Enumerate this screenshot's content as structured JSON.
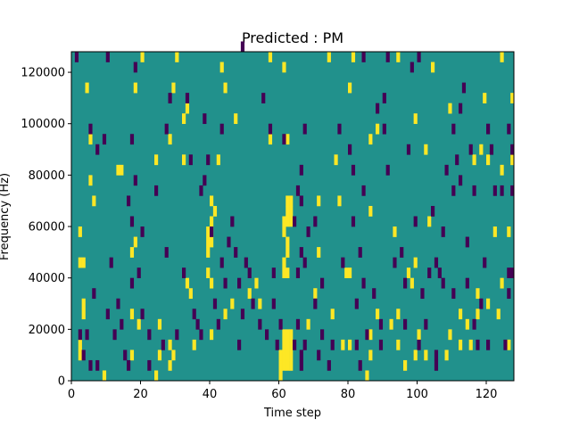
{
  "chart_data": {
    "type": "heatmap",
    "title": "Predicted : PM",
    "xlabel": "Time step",
    "ylabel": "Frequency (Hz)",
    "xlim": [
      0,
      128
    ],
    "ylim": [
      0,
      128000
    ],
    "x_ticks": [
      0,
      20,
      40,
      60,
      80,
      100,
      120
    ],
    "y_ticks": [
      0,
      20000,
      40000,
      60000,
      80000,
      100000,
      120000
    ],
    "x_tick_labels": [
      "0",
      "20",
      "40",
      "60",
      "80",
      "100",
      "120"
    ],
    "y_tick_labels": [
      "0",
      "20000",
      "40000",
      "60000",
      "80000",
      "100000",
      "120000"
    ],
    "grid": false,
    "colors": {
      "background": "#21918c",
      "high": "#fde725",
      "low": "#440154"
    },
    "cell_height_hz": 4000,
    "cells": {
      "high": [
        [
          2,
          8000
        ],
        [
          2,
          12000
        ],
        [
          3,
          24000
        ],
        [
          3,
          28000
        ],
        [
          2,
          44000
        ],
        [
          3,
          44000
        ],
        [
          2,
          56000
        ],
        [
          5,
          76000
        ],
        [
          6,
          68000
        ],
        [
          4,
          112000
        ],
        [
          5,
          92000
        ],
        [
          9,
          0
        ],
        [
          17,
          8000
        ],
        [
          17,
          24000
        ],
        [
          13,
          80000
        ],
        [
          14,
          80000
        ],
        [
          17,
          48000
        ],
        [
          18,
          52000
        ],
        [
          19,
          20000
        ],
        [
          20,
          124000
        ],
        [
          18,
          112000
        ],
        [
          24,
          0
        ],
        [
          25,
          20000
        ],
        [
          25,
          8000
        ],
        [
          24,
          84000
        ],
        [
          28,
          4000
        ],
        [
          29,
          8000
        ],
        [
          28,
          12000
        ],
        [
          30,
          124000
        ],
        [
          29,
          112000
        ],
        [
          28,
          92000
        ],
        [
          32,
          84000
        ],
        [
          33,
          36000
        ],
        [
          34,
          32000
        ],
        [
          35,
          12000
        ],
        [
          32,
          100000
        ],
        [
          33,
          104000
        ],
        [
          39,
          48000
        ],
        [
          39,
          52000
        ],
        [
          39,
          56000
        ],
        [
          40,
          52000
        ],
        [
          40,
          56000
        ],
        [
          40,
          36000
        ],
        [
          40,
          16000
        ],
        [
          40,
          68000
        ],
        [
          41,
          64000
        ],
        [
          40,
          60000
        ],
        [
          39,
          40000
        ],
        [
          42,
          84000
        ],
        [
          44,
          24000
        ],
        [
          46,
          28000
        ],
        [
          47,
          100000
        ],
        [
          44,
          112000
        ],
        [
          43,
          120000
        ],
        [
          51,
          32000
        ],
        [
          53,
          36000
        ],
        [
          54,
          28000
        ],
        [
          57,
          124000
        ],
        [
          57,
          92000
        ],
        [
          60,
          0
        ],
        [
          60,
          4000
        ],
        [
          60,
          8000
        ],
        [
          61,
          8000
        ],
        [
          61,
          12000
        ],
        [
          61,
          16000
        ],
        [
          61,
          4000
        ],
        [
          62,
          8000
        ],
        [
          62,
          12000
        ],
        [
          62,
          16000
        ],
        [
          62,
          4000
        ],
        [
          63,
          16000
        ],
        [
          63,
          12000
        ],
        [
          63,
          8000
        ],
        [
          63,
          4000
        ],
        [
          61,
          40000
        ],
        [
          62,
          40000
        ],
        [
          61,
          44000
        ],
        [
          62,
          48000
        ],
        [
          62,
          52000
        ],
        [
          61,
          56000
        ],
        [
          61,
          60000
        ],
        [
          62,
          60000
        ],
        [
          63,
          60000
        ],
        [
          62,
          64000
        ],
        [
          63,
          64000
        ],
        [
          62,
          68000
        ],
        [
          63,
          68000
        ],
        [
          62,
          92000
        ],
        [
          61,
          120000
        ],
        [
          68,
          20000
        ],
        [
          70,
          32000
        ],
        [
          71,
          48000
        ],
        [
          71,
          68000
        ],
        [
          74,
          124000
        ],
        [
          75,
          24000
        ],
        [
          76,
          84000
        ],
        [
          77,
          68000
        ],
        [
          78,
          12000
        ],
        [
          79,
          40000
        ],
        [
          80,
          40000
        ],
        [
          80,
          12000
        ],
        [
          80,
          112000
        ],
        [
          81,
          124000
        ],
        [
          85,
          0
        ],
        [
          86,
          16000
        ],
        [
          86,
          64000
        ],
        [
          88,
          24000
        ],
        [
          88,
          96000
        ],
        [
          86,
          92000
        ],
        [
          86,
          8000
        ],
        [
          92,
          20000
        ],
        [
          94,
          24000
        ],
        [
          93,
          56000
        ],
        [
          94,
          12000
        ],
        [
          94,
          124000
        ],
        [
          96,
          4000
        ],
        [
          97,
          40000
        ],
        [
          98,
          36000
        ],
        [
          99,
          8000
        ],
        [
          99,
          44000
        ],
        [
          99,
          100000
        ],
        [
          100,
          16000
        ],
        [
          102,
          8000
        ],
        [
          103,
          60000
        ],
        [
          104,
          120000
        ],
        [
          102,
          88000
        ],
        [
          108,
          8000
        ],
        [
          109,
          16000
        ],
        [
          109,
          104000
        ],
        [
          112,
          24000
        ],
        [
          112,
          12000
        ],
        [
          114,
          20000
        ],
        [
          115,
          12000
        ],
        [
          116,
          84000
        ],
        [
          117,
          32000
        ],
        [
          117,
          24000
        ],
        [
          118,
          88000
        ],
        [
          119,
          108000
        ],
        [
          120,
          28000
        ],
        [
          120,
          84000
        ],
        [
          122,
          56000
        ],
        [
          123,
          24000
        ],
        [
          124,
          36000
        ],
        [
          124,
          80000
        ],
        [
          124,
          124000
        ],
        [
          126,
          12000
        ],
        [
          126,
          56000
        ],
        [
          127,
          108000
        ],
        [
          127,
          84000
        ]
      ],
      "low": [
        [
          1,
          124000
        ],
        [
          2,
          16000
        ],
        [
          3,
          8000
        ],
        [
          4,
          16000
        ],
        [
          5,
          4000
        ],
        [
          5,
          96000
        ],
        [
          6,
          32000
        ],
        [
          7,
          4000
        ],
        [
          7,
          88000
        ],
        [
          9,
          92000
        ],
        [
          10,
          24000
        ],
        [
          11,
          44000
        ],
        [
          10,
          124000
        ],
        [
          12,
          16000
        ],
        [
          13,
          28000
        ],
        [
          14,
          20000
        ],
        [
          15,
          8000
        ],
        [
          16,
          4000
        ],
        [
          16,
          68000
        ],
        [
          17,
          36000
        ],
        [
          17,
          92000
        ],
        [
          18,
          76000
        ],
        [
          17,
          60000
        ],
        [
          18,
          120000
        ],
        [
          19,
          40000
        ],
        [
          20,
          24000
        ],
        [
          20,
          56000
        ],
        [
          22,
          16000
        ],
        [
          22,
          4000
        ],
        [
          24,
          72000
        ],
        [
          26,
          12000
        ],
        [
          27,
          48000
        ],
        [
          27,
          96000
        ],
        [
          28,
          108000
        ],
        [
          30,
          16000
        ],
        [
          32,
          40000
        ],
        [
          33,
          108000
        ],
        [
          34,
          84000
        ],
        [
          35,
          24000
        ],
        [
          36,
          20000
        ],
        [
          37,
          72000
        ],
        [
          38,
          76000
        ],
        [
          37,
          16000
        ],
        [
          38,
          100000
        ],
        [
          39,
          84000
        ],
        [
          40,
          56000
        ],
        [
          41,
          28000
        ],
        [
          42,
          20000
        ],
        [
          43,
          44000
        ],
        [
          43,
          96000
        ],
        [
          44,
          36000
        ],
        [
          45,
          52000
        ],
        [
          46,
          60000
        ],
        [
          47,
          48000
        ],
        [
          48,
          12000
        ],
        [
          48,
          36000
        ],
        [
          49,
          24000
        ],
        [
          49,
          128000
        ],
        [
          50,
          44000
        ],
        [
          51,
          40000
        ],
        [
          52,
          28000
        ],
        [
          54,
          20000
        ],
        [
          55,
          108000
        ],
        [
          56,
          16000
        ],
        [
          57,
          96000
        ],
        [
          58,
          40000
        ],
        [
          58,
          28000
        ],
        [
          59,
          12000
        ],
        [
          60,
          20000
        ],
        [
          61,
          92000
        ],
        [
          64,
          12000
        ],
        [
          64,
          60000
        ],
        [
          65,
          20000
        ],
        [
          65,
          40000
        ],
        [
          65,
          72000
        ],
        [
          66,
          68000
        ],
        [
          66,
          80000
        ],
        [
          66,
          48000
        ],
        [
          67,
          44000
        ],
        [
          66,
          8000
        ],
        [
          66,
          4000
        ],
        [
          67,
          12000
        ],
        [
          67,
          96000
        ],
        [
          68,
          56000
        ],
        [
          70,
          28000
        ],
        [
          70,
          60000
        ],
        [
          71,
          8000
        ],
        [
          72,
          16000
        ],
        [
          72,
          36000
        ],
        [
          74,
          4000
        ],
        [
          75,
          12000
        ],
        [
          77,
          96000
        ],
        [
          78,
          44000
        ],
        [
          80,
          88000
        ],
        [
          81,
          80000
        ],
        [
          81,
          60000
        ],
        [
          82,
          12000
        ],
        [
          82,
          28000
        ],
        [
          83,
          48000
        ],
        [
          83,
          4000
        ],
        [
          84,
          36000
        ],
        [
          84,
          72000
        ],
        [
          84,
          124000
        ],
        [
          85,
          16000
        ],
        [
          87,
          32000
        ],
        [
          88,
          104000
        ],
        [
          89,
          20000
        ],
        [
          89,
          12000
        ],
        [
          91,
          80000
        ],
        [
          90,
          96000
        ],
        [
          90,
          108000
        ],
        [
          91,
          124000
        ],
        [
          93,
          44000
        ],
        [
          95,
          48000
        ],
        [
          96,
          36000
        ],
        [
          96,
          20000
        ],
        [
          97,
          88000
        ],
        [
          98,
          120000
        ],
        [
          99,
          60000
        ],
        [
          100,
          12000
        ],
        [
          100,
          124000
        ],
        [
          101,
          32000
        ],
        [
          102,
          20000
        ],
        [
          103,
          40000
        ],
        [
          104,
          64000
        ],
        [
          105,
          44000
        ],
        [
          105,
          4000
        ],
        [
          105,
          8000
        ],
        [
          106,
          40000
        ],
        [
          107,
          56000
        ],
        [
          107,
          36000
        ],
        [
          108,
          80000
        ],
        [
          110,
          96000
        ],
        [
          110,
          32000
        ],
        [
          110,
          72000
        ],
        [
          112,
          76000
        ],
        [
          111,
          84000
        ],
        [
          112,
          104000
        ],
        [
          113,
          112000
        ],
        [
          114,
          36000
        ],
        [
          114,
          52000
        ],
        [
          115,
          88000
        ],
        [
          116,
          20000
        ],
        [
          116,
          72000
        ],
        [
          117,
          12000
        ],
        [
          118,
          28000
        ],
        [
          119,
          44000
        ],
        [
          120,
          96000
        ],
        [
          120,
          12000
        ],
        [
          121,
          88000
        ],
        [
          122,
          72000
        ],
        [
          124,
          72000
        ],
        [
          125,
          12000
        ],
        [
          126,
          32000
        ],
        [
          126,
          40000
        ],
        [
          127,
          40000
        ],
        [
          126,
          96000
        ],
        [
          127,
          72000
        ],
        [
          127,
          88000
        ]
      ]
    }
  }
}
